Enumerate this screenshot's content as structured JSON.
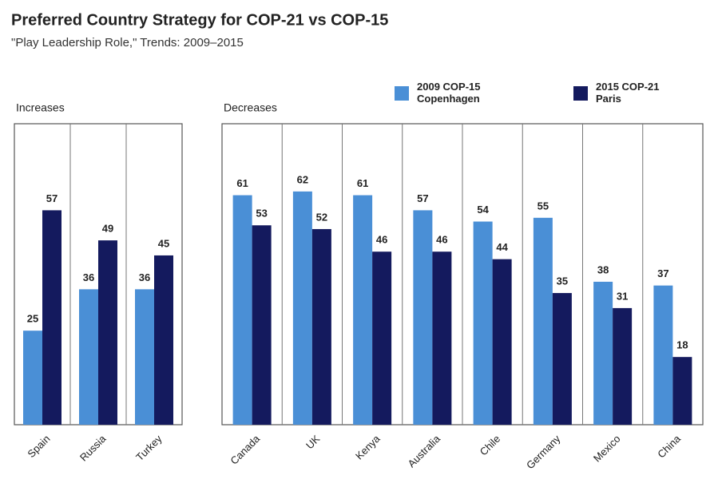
{
  "header": {
    "title": "Preferred Country Strategy for COP-21 vs COP-15",
    "subtitle": "\"Play Leadership Role,\" Trends: 2009–2015"
  },
  "chart_data": [
    {
      "type": "bar",
      "title": "Increases",
      "categories": [
        "Spain",
        "Russia",
        "Turkey"
      ],
      "series": [
        {
          "color": "#4a8fd6",
          "values": [
            25,
            36,
            36
          ]
        },
        {
          "color": "#141a5e",
          "values": [
            57,
            49,
            45
          ]
        }
      ],
      "ylim": [
        0,
        80
      ]
    },
    {
      "type": "bar",
      "title": "Decreases",
      "categories": [
        "Canada",
        "UK",
        "Kenya",
        "Australia",
        "Chile",
        "Germany",
        "Mexico",
        "China"
      ],
      "series": [
        {
          "name": "2009 COP-15 Copenhagen",
          "color": "#4a8fd6",
          "values": [
            61,
            62,
            61,
            57,
            54,
            55,
            38,
            37
          ]
        },
        {
          "name": "2015 COP-21 Paris",
          "color": "#141a5e",
          "values": [
            53,
            52,
            46,
            46,
            44,
            35,
            31,
            18
          ]
        }
      ],
      "ylim": [
        0,
        80
      ],
      "legend": "top-right"
    }
  ]
}
